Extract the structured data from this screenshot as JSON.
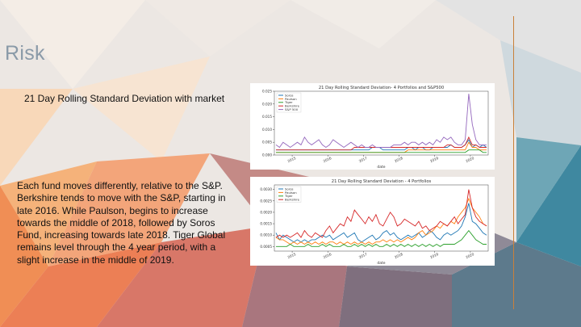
{
  "slide": {
    "title": "Risk",
    "subtitle": "21 Day Rolling Standard Deviation with market",
    "body": "Each fund moves differently, relative to the S&P. Berkshire tends to move with the S&P, starting in late 2016. While Paulson, begins to increase towards the middle of 2018, followed by Soros Fund, increasing towards late 2018. Tiger Global remains level through the 4 year period, with a slight increase in the middle of 2019."
  },
  "colors": {
    "accent_line": "#c9813a",
    "title": "#8a9aa8",
    "soros": "#1f77b4",
    "paulson": "#ff7f0e",
    "tiger": "#2ca02c",
    "berkshire": "#d62728",
    "sp500": "#9467bd"
  },
  "chart_data": [
    {
      "type": "line",
      "title": "21 Day Rolling Standard Deviation- 4 Portfolios and S&P500",
      "xlabel": "date",
      "ylabel": "",
      "x_ticks": [
        "2015",
        "2016",
        "2017",
        "2018",
        "2019",
        "2020"
      ],
      "y_ticks": [
        "0.000",
        "0.005",
        "0.010",
        "0.015",
        "0.020",
        "0.025"
      ],
      "ylim": [
        0,
        0.025
      ],
      "legend": [
        "Soros",
        "Paulson",
        "Tiger",
        "Berkshire",
        "S&P 500"
      ],
      "legend_position": "top-left",
      "series": [
        {
          "name": "Soros",
          "color": "#1f77b4",
          "values": [
            0.002,
            0.002,
            0.002,
            0.002,
            0.002,
            0.002,
            0.002,
            0.002,
            0.002,
            0.002,
            0.002,
            0.002,
            0.002,
            0.002,
            0.002,
            0.002,
            0.002,
            0.002,
            0.002,
            0.002,
            0.002,
            0.002,
            0.002,
            0.002,
            0.002,
            0.002,
            0.002,
            0.003,
            0.003,
            0.003,
            0.002,
            0.002,
            0.002,
            0.002,
            0.002,
            0.002,
            0.002,
            0.003,
            0.003,
            0.002,
            0.003,
            0.003,
            0.002,
            0.002,
            0.003,
            0.003,
            0.003,
            0.003,
            0.003,
            0.004,
            0.003,
            0.003,
            0.003,
            0.004,
            0.006,
            0.003,
            0.004,
            0.003,
            0.004,
            0.003
          ]
        },
        {
          "name": "Paulson",
          "color": "#ff7f0e",
          "values": [
            0.001,
            0.001,
            0.001,
            0.001,
            0.001,
            0.001,
            0.001,
            0.001,
            0.001,
            0.001,
            0.001,
            0.001,
            0.001,
            0.001,
            0.001,
            0.001,
            0.001,
            0.001,
            0.001,
            0.001,
            0.001,
            0.001,
            0.001,
            0.001,
            0.001,
            0.001,
            0.001,
            0.001,
            0.001,
            0.001,
            0.001,
            0.001,
            0.001,
            0.001,
            0.001,
            0.001,
            0.001,
            0.002,
            0.002,
            0.002,
            0.002,
            0.002,
            0.002,
            0.002,
            0.002,
            0.002,
            0.002,
            0.002,
            0.002,
            0.002,
            0.002,
            0.002,
            0.002,
            0.002,
            0.005,
            0.003,
            0.003,
            0.002,
            0.002,
            0.002
          ]
        },
        {
          "name": "Tiger",
          "color": "#2ca02c",
          "values": [
            0.001,
            0.001,
            0.001,
            0.001,
            0.001,
            0.001,
            0.001,
            0.001,
            0.001,
            0.001,
            0.001,
            0.001,
            0.001,
            0.001,
            0.001,
            0.001,
            0.001,
            0.001,
            0.001,
            0.001,
            0.001,
            0.001,
            0.001,
            0.001,
            0.001,
            0.001,
            0.001,
            0.001,
            0.001,
            0.001,
            0.001,
            0.001,
            0.001,
            0.001,
            0.001,
            0.001,
            0.001,
            0.001,
            0.001,
            0.001,
            0.001,
            0.001,
            0.001,
            0.001,
            0.001,
            0.001,
            0.001,
            0.001,
            0.001,
            0.001,
            0.001,
            0.001,
            0.001,
            0.001,
            0.002,
            0.002,
            0.002,
            0.002,
            0.001,
            0.001
          ]
        },
        {
          "name": "Berkshire",
          "color": "#d62728",
          "values": [
            0.002,
            0.002,
            0.002,
            0.002,
            0.002,
            0.002,
            0.002,
            0.002,
            0.002,
            0.002,
            0.002,
            0.002,
            0.002,
            0.002,
            0.002,
            0.002,
            0.002,
            0.002,
            0.002,
            0.002,
            0.002,
            0.002,
            0.003,
            0.003,
            0.003,
            0.003,
            0.003,
            0.003,
            0.003,
            0.003,
            0.003,
            0.003,
            0.003,
            0.003,
            0.003,
            0.003,
            0.003,
            0.003,
            0.003,
            0.003,
            0.003,
            0.003,
            0.003,
            0.003,
            0.003,
            0.003,
            0.003,
            0.003,
            0.004,
            0.004,
            0.003,
            0.003,
            0.003,
            0.004,
            0.007,
            0.004,
            0.004,
            0.003,
            0.003,
            0.003
          ]
        },
        {
          "name": "S&P 500",
          "color": "#9467bd",
          "values": [
            0.004,
            0.003,
            0.005,
            0.004,
            0.003,
            0.004,
            0.005,
            0.004,
            0.007,
            0.005,
            0.004,
            0.005,
            0.006,
            0.004,
            0.003,
            0.004,
            0.006,
            0.005,
            0.004,
            0.003,
            0.004,
            0.005,
            0.004,
            0.003,
            0.004,
            0.003,
            0.003,
            0.004,
            0.003,
            0.003,
            0.003,
            0.003,
            0.003,
            0.004,
            0.004,
            0.004,
            0.005,
            0.004,
            0.005,
            0.005,
            0.004,
            0.005,
            0.004,
            0.005,
            0.004,
            0.006,
            0.005,
            0.007,
            0.006,
            0.007,
            0.005,
            0.004,
            0.004,
            0.006,
            0.024,
            0.012,
            0.006,
            0.004,
            0.004,
            0.004
          ]
        }
      ]
    },
    {
      "type": "line",
      "title": "21 Day Rolling Standard Deviation - 4 Portfolios",
      "xlabel": "date",
      "ylabel": "",
      "x_ticks": [
        "2015",
        "2016",
        "2017",
        "2018",
        "2019",
        "2020"
      ],
      "y_ticks": [
        "0.0005",
        "0.0010",
        "0.0015",
        "0.0020",
        "0.0025",
        "0.0030"
      ],
      "ylim": [
        0.0003,
        0.0032
      ],
      "legend": [
        "Soros",
        "Paulson",
        "Tiger",
        "Berkshire"
      ],
      "legend_position": "top-left",
      "series": [
        {
          "name": "Soros",
          "color": "#1f77b4",
          "values": [
            0.0011,
            0.0008,
            0.001,
            0.0009,
            0.0008,
            0.0007,
            0.0008,
            0.0007,
            0.0008,
            0.0007,
            0.0008,
            0.0008,
            0.0009,
            0.001,
            0.0009,
            0.001,
            0.0008,
            0.0009,
            0.001,
            0.0011,
            0.0009,
            0.001,
            0.0011,
            0.0008,
            0.0007,
            0.0008,
            0.0009,
            0.001,
            0.0008,
            0.0009,
            0.0011,
            0.0012,
            0.001,
            0.0011,
            0.0009,
            0.0008,
            0.0009,
            0.001,
            0.0009,
            0.001,
            0.0011,
            0.0009,
            0.001,
            0.0012,
            0.0011,
            0.0009,
            0.0008,
            0.001,
            0.0011,
            0.001,
            0.0011,
            0.0012,
            0.0014,
            0.0018,
            0.0024,
            0.0016,
            0.0015,
            0.0013,
            0.0011,
            0.001
          ]
        },
        {
          "name": "Paulson",
          "color": "#ff7f0e",
          "values": [
            0.0009,
            0.0008,
            0.0008,
            0.0007,
            0.0006,
            0.0007,
            0.0006,
            0.0007,
            0.0006,
            0.0007,
            0.0006,
            0.0007,
            0.0006,
            0.0007,
            0.0006,
            0.0007,
            0.0007,
            0.0006,
            0.0007,
            0.0006,
            0.0007,
            0.0006,
            0.0007,
            0.0006,
            0.0007,
            0.0006,
            0.0007,
            0.0006,
            0.0007,
            0.0007,
            0.0008,
            0.0007,
            0.0008,
            0.0007,
            0.0008,
            0.0007,
            0.0008,
            0.0009,
            0.0008,
            0.0009,
            0.0011,
            0.0012,
            0.001,
            0.0011,
            0.0012,
            0.0014,
            0.0013,
            0.0015,
            0.0014,
            0.0016,
            0.0015,
            0.0018,
            0.002,
            0.0022,
            0.0026,
            0.0022,
            0.002,
            0.0018,
            0.0015,
            0.0014
          ]
        },
        {
          "name": "Tiger",
          "color": "#2ca02c",
          "values": [
            0.0005,
            0.0005,
            0.0005,
            0.0005,
            0.0006,
            0.0005,
            0.0005,
            0.0005,
            0.0005,
            0.0006,
            0.0005,
            0.0005,
            0.0005,
            0.0006,
            0.0005,
            0.0006,
            0.0005,
            0.0005,
            0.0005,
            0.0006,
            0.0005,
            0.0005,
            0.0006,
            0.0005,
            0.0006,
            0.0005,
            0.0006,
            0.0005,
            0.0006,
            0.0005,
            0.0005,
            0.0006,
            0.0005,
            0.0006,
            0.0005,
            0.0006,
            0.0005,
            0.0006,
            0.0005,
            0.0006,
            0.0005,
            0.0006,
            0.0005,
            0.0006,
            0.0005,
            0.0006,
            0.0005,
            0.0006,
            0.0006,
            0.0006,
            0.0006,
            0.0007,
            0.0008,
            0.001,
            0.0012,
            0.001,
            0.0008,
            0.0007,
            0.0006,
            0.0006
          ]
        },
        {
          "name": "Berkshire",
          "color": "#d62728",
          "values": [
            0.0009,
            0.001,
            0.0009,
            0.001,
            0.0009,
            0.001,
            0.0011,
            0.0009,
            0.0012,
            0.001,
            0.0009,
            0.0011,
            0.001,
            0.0009,
            0.0012,
            0.0014,
            0.0011,
            0.0013,
            0.0015,
            0.0014,
            0.0018,
            0.0016,
            0.0021,
            0.0019,
            0.0017,
            0.0015,
            0.0018,
            0.0016,
            0.0019,
            0.0015,
            0.0014,
            0.0017,
            0.002,
            0.0018,
            0.0014,
            0.0015,
            0.0017,
            0.0016,
            0.0015,
            0.0014,
            0.0016,
            0.0013,
            0.0014,
            0.0012,
            0.0013,
            0.0014,
            0.0016,
            0.0015,
            0.0014,
            0.0016,
            0.0018,
            0.0015,
            0.0017,
            0.0019,
            0.003,
            0.0022,
            0.0018,
            0.0016,
            0.0015,
            0.0014
          ]
        }
      ]
    }
  ]
}
